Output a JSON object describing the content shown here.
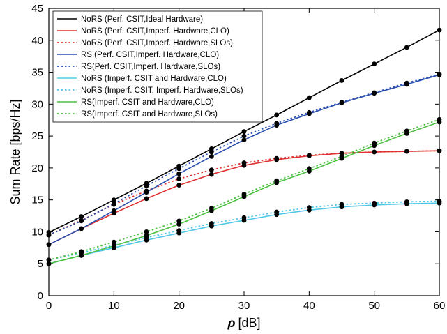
{
  "chart_data": {
    "type": "line",
    "xlabel_symbol": "ρ",
    "xlabel_unit": "[dB]",
    "ylabel": "Sum Rate [bps/Hz]",
    "xlim": [
      0,
      60
    ],
    "ylim": [
      0,
      45
    ],
    "xticks": [
      0,
      10,
      20,
      30,
      40,
      50,
      60
    ],
    "yticks": [
      0,
      5,
      10,
      15,
      20,
      25,
      30,
      35,
      40,
      45
    ],
    "grid": false,
    "legend_position": "top-left",
    "x": [
      0,
      5,
      10,
      15,
      20,
      25,
      30,
      35,
      40,
      45,
      50,
      55,
      60
    ],
    "series": [
      {
        "name": "NoRS (Perf. CSIT,Ideal Hardware)",
        "color": "#000000",
        "dash": "solid",
        "values": [
          9.9,
          12.4,
          15.0,
          17.6,
          20.3,
          23.0,
          25.7,
          28.3,
          31.0,
          33.7,
          36.3,
          38.9,
          41.6
        ]
      },
      {
        "name": "NoRS (Perf. CSIT,Imperf. Hardware,CLO)",
        "color": "#e03030",
        "dash": "solid",
        "values": [
          8.0,
          10.5,
          12.9,
          15.2,
          17.3,
          19.0,
          20.4,
          21.3,
          21.9,
          22.3,
          22.5,
          22.6,
          22.7
        ]
      },
      {
        "name": "NoRS (Perf. CSIT,Imperf. Hardware,SLOs)",
        "color": "#e03030",
        "dash": "dotted",
        "values": [
          9.5,
          11.8,
          14.3,
          16.4,
          18.3,
          19.7,
          20.8,
          21.5,
          22.0,
          22.3,
          22.5,
          22.6,
          22.7
        ]
      },
      {
        "name": "RS (Perf. CSIT,Imperf. Hardware,CLO)",
        "color": "#2b4fb0",
        "dash": "solid",
        "values": [
          8.0,
          10.5,
          13.3,
          16.2,
          19.1,
          21.8,
          24.4,
          26.7,
          28.5,
          30.2,
          31.7,
          33.1,
          34.6
        ]
      },
      {
        "name": "RS(Perf. CSIT,Imperf. Hardware,SLOs)",
        "color": "#2b4fb0",
        "dash": "dotted",
        "values": [
          9.5,
          11.7,
          14.4,
          17.2,
          19.9,
          22.5,
          25.0,
          27.0,
          28.7,
          30.3,
          31.8,
          33.3,
          34.7
        ]
      },
      {
        "name": "NoRS (Imperf. CSIT and Hardware,CLO)",
        "color": "#4fc8e8",
        "dash": "solid",
        "values": [
          5.0,
          6.3,
          7.5,
          8.7,
          9.8,
          10.9,
          11.8,
          12.7,
          13.4,
          13.9,
          14.2,
          14.4,
          14.5
        ]
      },
      {
        "name": "NoRS (Imperf. CSIT, Imperf. Hardware,SLOs)",
        "color": "#4fc8e8",
        "dash": "dotted",
        "values": [
          5.6,
          6.7,
          7.9,
          9.1,
          10.2,
          11.3,
          12.2,
          13.1,
          13.8,
          14.3,
          14.5,
          14.7,
          14.8
        ]
      },
      {
        "name": "RS(Imperf. CSIT and Hardware,CLO)",
        "color": "#4cc040",
        "dash": "solid",
        "values": [
          5.0,
          6.3,
          7.8,
          9.4,
          11.2,
          13.3,
          15.5,
          17.7,
          19.5,
          21.5,
          23.5,
          25.4,
          27.2
        ]
      },
      {
        "name": "RS(Imperf. CSIT and Hardware,SLOs)",
        "color": "#4cc040",
        "dash": "dotted",
        "values": [
          5.6,
          6.9,
          8.4,
          10.0,
          11.7,
          13.7,
          15.9,
          18.0,
          19.9,
          21.8,
          23.9,
          25.8,
          27.6
        ]
      }
    ],
    "dot_color": "#000000"
  }
}
